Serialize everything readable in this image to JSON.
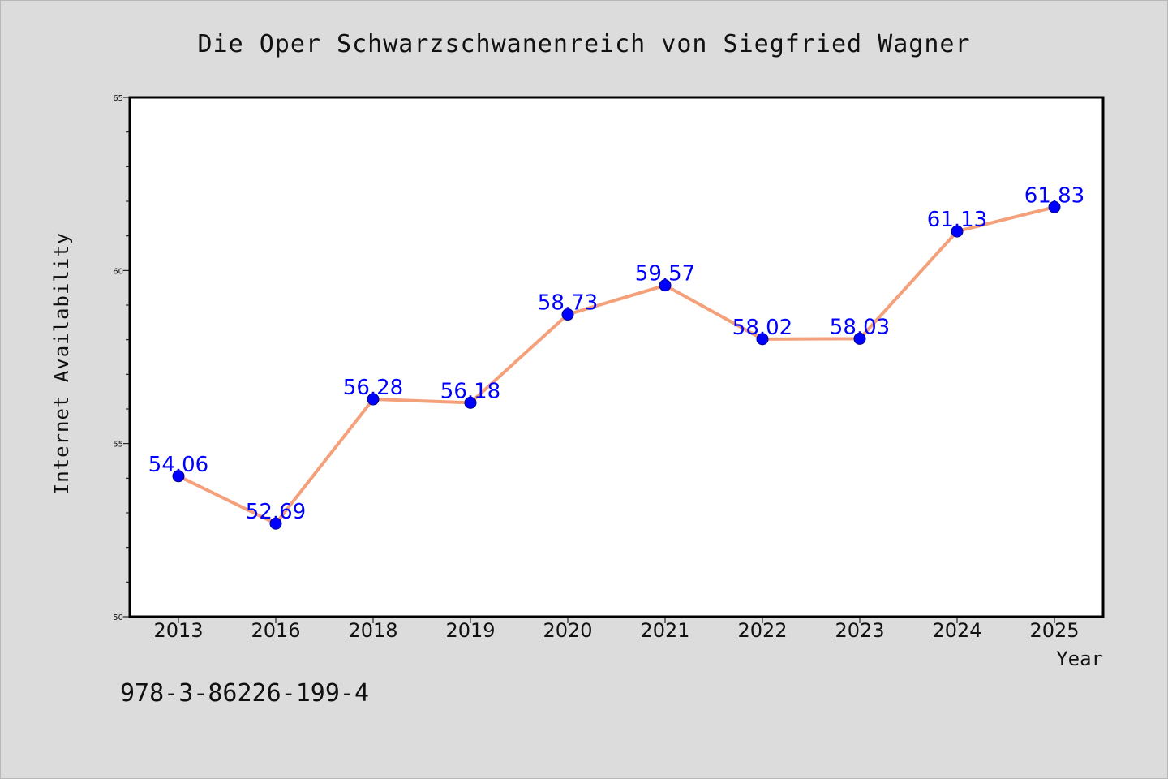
{
  "colors": {
    "background": "#dcdcdc",
    "plot_background": "#ffffff",
    "line": "#f4a07a",
    "marker": "#0000ff",
    "marker_edge": "#00008b",
    "data_label": "#0000ff"
  },
  "footnote": "978-3-86226-199-4",
  "chart_data": {
    "type": "line",
    "title": "Die Oper Schwarzschwanenreich von Siegfried Wagner",
    "xlabel": "Year",
    "ylabel": "Internet Availability",
    "categories": [
      "2013",
      "2016",
      "2018",
      "2019",
      "2020",
      "2021",
      "2022",
      "2023",
      "2024",
      "2025"
    ],
    "series": [
      {
        "values": [
          54.06,
          52.69,
          56.28,
          56.18,
          58.73,
          59.57,
          58.02,
          58.03,
          61.13,
          61.83
        ],
        "labels": [
          "54.06",
          "52.69",
          "56.28",
          "56.18",
          "58.73",
          "59.57",
          "58.02",
          "58.03",
          "61.13",
          "61.83"
        ]
      }
    ],
    "ylim": [
      50,
      65
    ],
    "yticks": [
      50,
      55,
      60,
      65
    ],
    "ytick_labels": [
      "50",
      "55",
      "60",
      "65"
    ],
    "y_minor_step": 1,
    "grid": false,
    "legend": "none"
  }
}
